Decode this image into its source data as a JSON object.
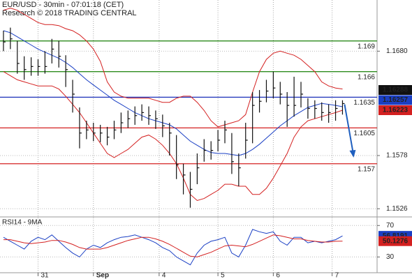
{
  "chart_data": [
    {
      "type": "ohlc",
      "title": "EUR/USD - 30min - 07:01:18 (CET)",
      "subtitle": "Research © 2018 TRADING CENTRAL",
      "xlim": [
        -0.5,
        54
      ],
      "xticks": [
        {
          "value": 5,
          "label": "31"
        },
        {
          "value": 13,
          "label": "Sep"
        },
        {
          "value": 22.5,
          "label": "4"
        },
        {
          "value": 31,
          "label": "5"
        },
        {
          "value": 39,
          "label": "6"
        },
        {
          "value": 47.5,
          "label": "7"
        }
      ],
      "ylim": [
        1.1518,
        1.173
      ],
      "yticks": [
        {
          "value": 1.168,
          "label": "1.1680"
        },
        1.1578,
        1.1526
      ],
      "bar_color": "#111111",
      "high": [
        1.17,
        1.1703,
        1.169,
        1.1675,
        1.1674,
        1.1672,
        1.168,
        1.1692,
        1.169,
        1.1676,
        1.1652,
        1.1625,
        1.1612,
        1.161,
        1.1608,
        1.1606,
        1.1612,
        1.162,
        1.1622,
        1.1626,
        1.1628,
        1.1626,
        1.1622,
        1.1618,
        1.161,
        1.1598,
        1.157,
        1.1562,
        1.158,
        1.1594,
        1.1592,
        1.1603,
        1.1612,
        1.16,
        1.158,
        1.161,
        1.164,
        1.1642,
        1.1652,
        1.166,
        1.165,
        1.164,
        1.1655,
        1.165,
        1.1634,
        1.1632,
        1.163,
        1.1628,
        1.1632,
        1.1632
      ],
      "low": [
        1.168,
        1.1682,
        1.1658,
        1.1652,
        1.1656,
        1.1656,
        1.1658,
        1.1668,
        1.1664,
        1.1645,
        1.162,
        1.1585,
        1.1594,
        1.1592,
        1.1591,
        1.1588,
        1.1594,
        1.16,
        1.1605,
        1.1608,
        1.1612,
        1.1608,
        1.1604,
        1.1596,
        1.1578,
        1.1555,
        1.154,
        1.1527,
        1.155,
        1.1572,
        1.1574,
        1.1582,
        1.159,
        1.156,
        1.1548,
        1.1575,
        1.159,
        1.162,
        1.163,
        1.1634,
        1.1628,
        1.1606,
        1.1616,
        1.1625,
        1.1614,
        1.1614,
        1.1612,
        1.161,
        1.1612,
        1.1618
      ],
      "close": [
        1.1689,
        1.1692,
        1.1668,
        1.1662,
        1.1665,
        1.1665,
        1.1665,
        1.1682,
        1.1675,
        1.1662,
        1.1638,
        1.16,
        1.1603,
        1.16,
        1.16,
        1.1596,
        1.1603,
        1.161,
        1.1614,
        1.1617,
        1.162,
        1.1617,
        1.1614,
        1.1607,
        1.16,
        1.1569,
        1.1559,
        1.1545,
        1.1566,
        1.1583,
        1.1583,
        1.1593,
        1.1603,
        1.1572,
        1.1566,
        1.1593,
        1.1627,
        1.1631,
        1.1641,
        1.1644,
        1.1638,
        1.1627,
        1.1627,
        1.1638,
        1.1624,
        1.1624,
        1.162,
        1.162,
        1.1624,
        1.16288
      ],
      "series": [
        {
          "color": "#1a3fc4",
          "values": [
            1.17,
            1.1698,
            1.1694,
            1.169,
            1.1686,
            1.1682,
            1.1679,
            1.1676,
            1.1673,
            1.1669,
            1.1664,
            1.1658,
            1.1652,
            1.1647,
            1.1642,
            1.1637,
            1.1632,
            1.1628,
            1.1624,
            1.162,
            1.1617,
            1.1614,
            1.1612,
            1.161,
            1.1608,
            1.1604,
            1.1598,
            1.1592,
            1.1588,
            1.1584,
            1.1581,
            1.158,
            1.158,
            1.1579,
            1.1578,
            1.158,
            1.1584,
            1.1589,
            1.1595,
            1.1601,
            1.1607,
            1.1612,
            1.1617,
            1.1621,
            1.1625,
            1.1627,
            1.1629,
            1.1628,
            1.1627,
            1.16257
          ]
        },
        {
          "color": "#d42020",
          "values": [
            1.172,
            1.1722,
            1.172,
            1.1716,
            1.1712,
            1.1708,
            1.1706,
            1.1706,
            1.1705,
            1.1702,
            1.17,
            1.1696,
            1.169,
            1.1682,
            1.167,
            1.165,
            1.164,
            1.1636,
            1.1634,
            1.1634,
            1.1634,
            1.1634,
            1.1632,
            1.163,
            1.163,
            1.1634,
            1.1636,
            1.1636,
            1.163,
            1.1622,
            1.1612,
            1.1606,
            1.1608,
            1.161,
            1.1612,
            1.1618,
            1.164,
            1.166,
            1.1672,
            1.1678,
            1.168,
            1.1678,
            1.1676,
            1.1672,
            1.1666,
            1.166,
            1.165,
            1.1646,
            1.1644,
            1.1643
          ]
        },
        {
          "color": "#d42020",
          "values": [
            1.166,
            1.1656,
            1.1652,
            1.165,
            1.1648,
            1.1646,
            1.1646,
            1.1646,
            1.1643,
            1.1636,
            1.1628,
            1.162,
            1.161,
            1.16,
            1.159,
            1.158,
            1.1576,
            1.158,
            1.1584,
            1.159,
            1.1596,
            1.1598,
            1.1594,
            1.1588,
            1.158,
            1.157,
            1.1556,
            1.154,
            1.1534,
            1.1536,
            1.154,
            1.1544,
            1.155,
            1.155,
            1.1548,
            1.1548,
            1.154,
            1.154,
            1.1546,
            1.1556,
            1.1568,
            1.158,
            1.1596,
            1.1606,
            1.1612,
            1.1614,
            1.1616,
            1.1618,
            1.162,
            1.16223
          ]
        }
      ],
      "levels": [
        {
          "value": 1.169,
          "color": "#2e8b1e"
        },
        {
          "value": 1.166,
          "color": "#2e8b1e"
        },
        {
          "value": 1.1635,
          "color": "#1a2fb8"
        },
        {
          "value": 1.1605,
          "color": "#d42020"
        },
        {
          "value": 1.157,
          "color": "#d42020"
        }
      ],
      "forecast": {
        "from": 1.1628,
        "to": 1.1576,
        "color": "#1f5fbf"
      }
    },
    {
      "type": "line",
      "title": "RSI14 - 9MA",
      "ylim": [
        10,
        80
      ],
      "yticks": [
        70,
        30
      ],
      "series": [
        {
          "color": "#1a3fc4",
          "values": [
            55,
            50,
            45,
            40,
            50,
            55,
            52,
            58,
            50,
            42,
            35,
            30,
            40,
            45,
            42,
            48,
            52,
            55,
            56,
            58,
            55,
            52,
            48,
            42,
            38,
            30,
            25,
            20,
            35,
            45,
            50,
            52,
            55,
            35,
            30,
            45,
            65,
            62,
            60,
            62,
            50,
            45,
            55,
            55,
            48,
            50,
            48,
            50,
            52,
            56.8191
          ]
        },
        {
          "color": "#d42020",
          "values": [
            52,
            52,
            50,
            48,
            47,
            48,
            49,
            51,
            51,
            49,
            46,
            42,
            40,
            40,
            40,
            42,
            45,
            48,
            51,
            53,
            55,
            55,
            53,
            50,
            46,
            41,
            36,
            31,
            30,
            33,
            36,
            40,
            44,
            45,
            44,
            43,
            46,
            50,
            54,
            58,
            57,
            55,
            53,
            53,
            51,
            50,
            49,
            49,
            50,
            50.1276
          ]
        }
      ]
    }
  ]
}
